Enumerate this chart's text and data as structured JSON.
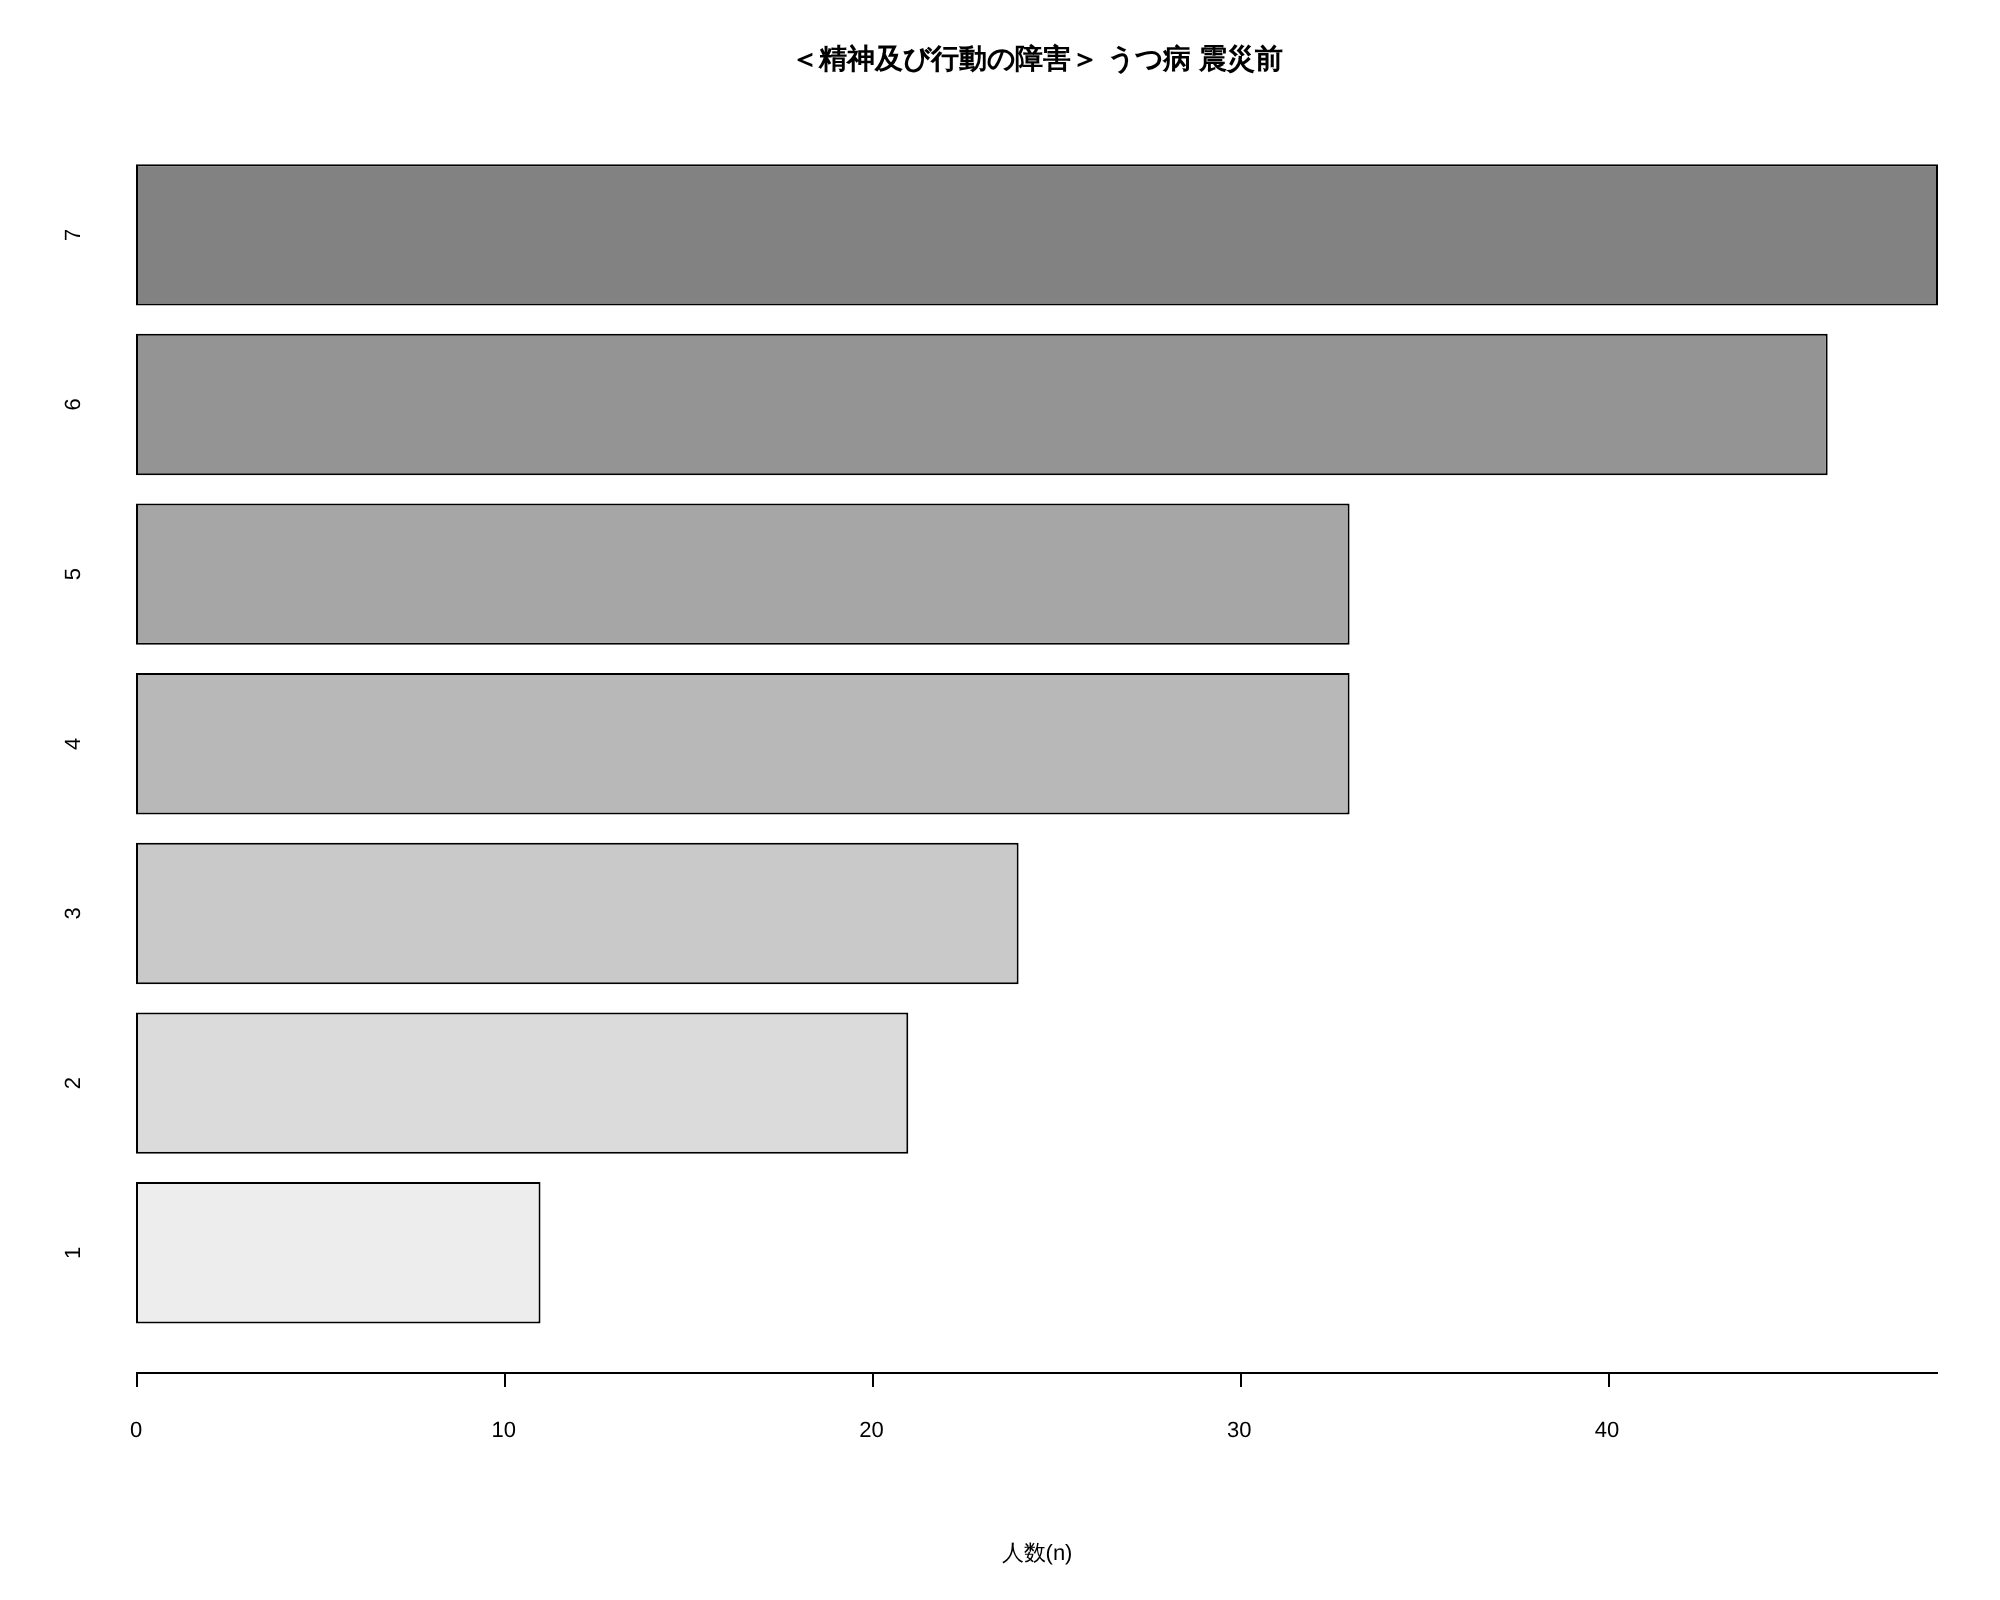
{
  "chart_data": {
    "type": "bar",
    "orientation": "horizontal",
    "title": "＜精神及び行動の障害＞ うつ病 震災前",
    "xlabel": "人数(n)",
    "categories": [
      "7",
      "6",
      "5",
      "4",
      "3",
      "2",
      "1"
    ],
    "values": [
      49,
      46,
      33,
      33,
      24,
      21,
      11
    ],
    "colors": [
      "#828282",
      "#949494",
      "#a6a6a6",
      "#b8b8b8",
      "#c9c9c9",
      "#dbdbdb",
      "#ededed"
    ],
    "xlim": [
      0,
      49
    ],
    "xticks": [
      0,
      10,
      20,
      30,
      40
    ]
  }
}
